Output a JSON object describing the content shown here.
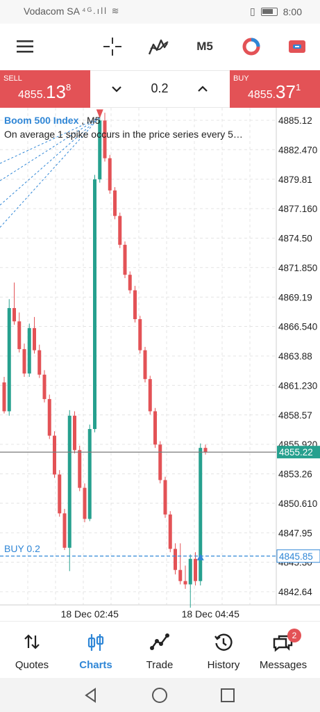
{
  "status_bar": {
    "carrier": "Vodacom SA",
    "signal_icons": "⁴ᴳ.ıll ≋",
    "time": "8:00"
  },
  "toolbar": {
    "menu_icon": "hamburger-menu-icon",
    "crosshair_icon": "crosshair-icon",
    "indicators_icon": "indicators-icon",
    "timeframe": "M5",
    "objects_icon": "objects-icon",
    "account_icon": "account-icon"
  },
  "trade": {
    "sell": {
      "label": "SELL",
      "prefix": "4855.",
      "big": "13",
      "sup": "8"
    },
    "buy": {
      "label": "BUY",
      "prefix": "4855.",
      "big": "37",
      "sup": "1"
    },
    "lot": "0.2"
  },
  "chart_header": {
    "symbol": "Boom 500 Index",
    "timeframe": "M5",
    "description": "On average 1 spike occurs in the price series every 5…"
  },
  "chart_data": {
    "type": "candlestick",
    "symbol": "Boom 500 Index",
    "timeframe": "M5",
    "y_ticks": [
      4885.12,
      4882.47,
      4879.81,
      4877.16,
      4874.5,
      4871.85,
      4869.19,
      4866.54,
      4863.88,
      4861.23,
      4858.57,
      4855.92,
      4853.26,
      4850.61,
      4847.95,
      4845.3,
      4842.64
    ],
    "y_tick_labels": [
      "4885.12",
      "4882.470",
      "4879.81",
      "4877.160",
      "4874.50",
      "4871.850",
      "4869.19",
      "4866.540",
      "4863.88",
      "4861.230",
      "4858.57",
      "4855.920",
      "4853.26",
      "4850.610",
      "4847.95",
      "4845.30",
      "4842.64"
    ],
    "ylim": [
      4840.5,
      4886.5
    ],
    "x_labels": [
      {
        "label": "18 Dec 02:45",
        "index": 17
      },
      {
        "label": "18 Dec 04:45",
        "index": 41
      }
    ],
    "current_price": 4855.22,
    "current_price_label": "4855.22",
    "position_price": 4845.85,
    "position_price_label": "4845.85",
    "position_label": "BUY 0.2",
    "candles": [
      [
        4861.5,
        4862.0,
        4858.7,
        4858.9
      ],
      [
        4858.9,
        4869.0,
        4858.5,
        4868.2
      ],
      [
        4868.2,
        4870.5,
        4866.7,
        4867.0
      ],
      [
        4867.0,
        4867.8,
        4864.2,
        4864.5
      ],
      [
        4864.5,
        4865.0,
        4862.0,
        4862.3
      ],
      [
        4862.3,
        4866.8,
        4862.0,
        4866.4
      ],
      [
        4866.4,
        4867.4,
        4864.1,
        4864.4
      ],
      [
        4864.4,
        4864.9,
        4861.9,
        4862.2
      ],
      [
        4862.2,
        4862.6,
        4859.7,
        4860.0
      ],
      [
        4860.0,
        4860.4,
        4856.4,
        4856.7
      ],
      [
        4856.7,
        4857.1,
        4852.9,
        4853.2
      ],
      [
        4853.2,
        4853.6,
        4849.4,
        4849.7
      ],
      [
        4849.7,
        4850.1,
        4846.4,
        4846.6
      ],
      [
        4846.6,
        4859.0,
        4844.5,
        4858.5
      ],
      [
        4858.5,
        4858.9,
        4855.1,
        4855.4
      ],
      [
        4855.4,
        4855.8,
        4851.7,
        4852.0
      ],
      [
        4852.0,
        4852.4,
        4848.9,
        4849.2
      ],
      [
        4849.2,
        4857.7,
        4849.0,
        4857.3
      ],
      [
        4857.3,
        4880.2,
        4857.0,
        4879.8
      ],
      [
        4879.8,
        4885.8,
        4879.5,
        4885.1
      ],
      [
        4885.1,
        4885.8,
        4881.4,
        4881.7
      ],
      [
        4881.7,
        4882.0,
        4878.5,
        4878.8
      ],
      [
        4878.8,
        4879.1,
        4876.2,
        4876.5
      ],
      [
        4876.5,
        4876.8,
        4873.6,
        4873.9
      ],
      [
        4873.9,
        4874.2,
        4870.9,
        4871.2
      ],
      [
        4871.2,
        4871.5,
        4869.5,
        4869.8
      ],
      [
        4869.8,
        4870.2,
        4866.9,
        4867.2
      ],
      [
        4867.2,
        4867.5,
        4864.1,
        4864.4
      ],
      [
        4864.4,
        4864.7,
        4861.5,
        4861.8
      ],
      [
        4861.8,
        4862.1,
        4858.6,
        4858.9
      ],
      [
        4858.9,
        4859.2,
        4855.6,
        4855.9
      ],
      [
        4855.9,
        4856.2,
        4852.4,
        4852.7
      ],
      [
        4852.7,
        4853.0,
        4849.3,
        4849.6
      ],
      [
        4849.6,
        4849.9,
        4846.2,
        4846.5
      ],
      [
        4846.5,
        4847.0,
        4844.2,
        4844.6
      ],
      [
        4844.6,
        4847.0,
        4843.3,
        4843.6
      ],
      [
        4843.6,
        4845.0,
        4842.9,
        4843.3
      ],
      [
        4843.3,
        4846.0,
        4841.2,
        4845.6
      ],
      [
        4845.6,
        4846.2,
        4843.2,
        4843.6
      ],
      [
        4843.6,
        4856.0,
        4843.2,
        4855.6
      ],
      [
        4855.6,
        4855.9,
        4855.0,
        4855.22
      ]
    ]
  },
  "nav": {
    "items": [
      {
        "label": "Quotes",
        "icon": "quotes-icon"
      },
      {
        "label": "Charts",
        "icon": "charts-icon"
      },
      {
        "label": "Trade",
        "icon": "trade-icon"
      },
      {
        "label": "History",
        "icon": "history-icon"
      },
      {
        "label": "Messages",
        "icon": "messages-icon",
        "badge": "2"
      }
    ],
    "active": "Charts"
  },
  "colors": {
    "bear": "#e35256",
    "bull": "#26a08e",
    "accent": "#2f86d6",
    "price_line": "#7a7a7a"
  }
}
